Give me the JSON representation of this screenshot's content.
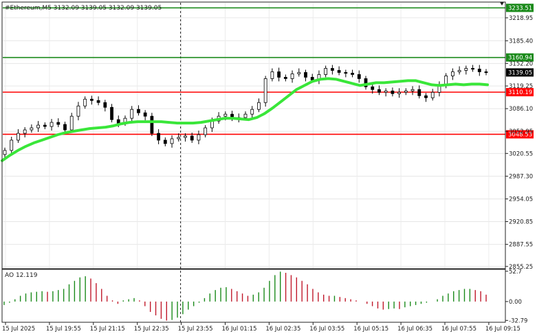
{
  "chart_data": {
    "type": "line",
    "title": "#Ethereum,M5  3132.09 3139.05 3132.09 3139.05",
    "price_axis": {
      "ticks": [
        "3218.95",
        "3185.40",
        "3152.20",
        "3119.25",
        "3086.10",
        "3052.95",
        "3020.55",
        "2987.30",
        "2954.05",
        "2920.85",
        "2887.55",
        "2855.25"
      ],
      "tick_values": [
        3218.95,
        3185.4,
        3152.2,
        3119.25,
        3086.1,
        3052.95,
        3020.55,
        2987.3,
        2954.05,
        2920.85,
        2887.55,
        2855.25
      ],
      "ylim": [
        2852,
        3242
      ]
    },
    "levels": [
      {
        "label": "3233.51",
        "value": 3233.51,
        "color": "#1a8a1a"
      },
      {
        "label": "3160.94",
        "value": 3160.94,
        "color": "#1a8a1a"
      },
      {
        "label": "3110.19",
        "value": 3110.19,
        "color": "#ff0000"
      },
      {
        "label": "3048.53",
        "value": 3048.53,
        "color": "#ff0000"
      }
    ],
    "current_price": {
      "label": "3139.05",
      "value": 3139.05
    },
    "time_axis": {
      "labels": [
        "15 Jul 2025",
        "15 Jul 19:55",
        "15 Jul 21:15",
        "15 Jul 22:35",
        "15 Jul 23:55",
        "16 Jul 01:15",
        "16 Jul 02:35",
        "16 Jul 03:55",
        "16 Jul 05:15",
        "16 Jul 06:35",
        "16 Jul 07:55",
        "16 Jul 09:15"
      ]
    },
    "period_separator_index": 4,
    "price_series": [
      3025,
      3040,
      3050,
      3055,
      3058,
      3062,
      3060,
      3066,
      3063,
      3055,
      3075,
      3090,
      3100,
      3098,
      3095,
      3088,
      3070,
      3065,
      3072,
      3085,
      3080,
      3075,
      3050,
      3040,
      3035,
      3042,
      3044,
      3046,
      3040,
      3048,
      3058,
      3068,
      3075,
      3078,
      3072,
      3073,
      3078,
      3085,
      3095,
      3130,
      3140,
      3132,
      3130,
      3137,
      3139,
      3132,
      3128,
      3136,
      3145,
      3142,
      3139,
      3138,
      3136,
      3130,
      3118,
      3114,
      3110,
      3112,
      3108,
      3110,
      3112,
      3114,
      3105,
      3102,
      3110,
      3120,
      3134,
      3140,
      3142,
      3145,
      3144,
      3140,
      3139
    ],
    "ma_series": [
      3010,
      3018,
      3025,
      3031,
      3036,
      3040,
      3044,
      3048,
      3051,
      3053,
      3055,
      3057,
      3058,
      3059,
      3061,
      3064,
      3066,
      3067,
      3067,
      3067,
      3067,
      3066,
      3065,
      3065,
      3065,
      3066,
      3068,
      3070,
      3072,
      3072,
      3071,
      3070,
      3073,
      3079,
      3087,
      3096,
      3105,
      3114,
      3120,
      3126,
      3129,
      3130,
      3129,
      3126,
      3123,
      3120,
      3122,
      3124,
      3124,
      3125,
      3126,
      3127,
      3127,
      3124,
      3121,
      3120,
      3121,
      3122,
      3121,
      3122,
      3122,
      3121
    ],
    "ma_color": "#39e639",
    "indicator": {
      "label": "AO 12.119",
      "ticks": [
        "52.7",
        "0.00",
        "-32.79"
      ],
      "tick_values": [
        52.7,
        0,
        -32.79
      ],
      "ylim": [
        -36,
        56
      ],
      "values": [
        -6,
        -2,
        4,
        10,
        14,
        16,
        17,
        18,
        17,
        18,
        20,
        22,
        30,
        36,
        42,
        44,
        40,
        32,
        22,
        10,
        2,
        -4,
        2,
        4,
        6,
        2,
        -8,
        -18,
        -24,
        -30,
        -33,
        -32,
        -28,
        -22,
        -14,
        -8,
        -2,
        6,
        14,
        20,
        24,
        25,
        22,
        18,
        14,
        10,
        12,
        16,
        24,
        36,
        46,
        52,
        50,
        46,
        42,
        36,
        30,
        22,
        16,
        12,
        10,
        10,
        8,
        6,
        4,
        2,
        0,
        -4,
        -8,
        -12,
        -14,
        -13,
        -12,
        -13,
        -10,
        -8,
        -6,
        -4,
        -2,
        0,
        4,
        10,
        14,
        18,
        20,
        22,
        22,
        20,
        18,
        12
      ],
      "up_color": "#1a8a1a",
      "down_color": "#c0182a"
    }
  }
}
